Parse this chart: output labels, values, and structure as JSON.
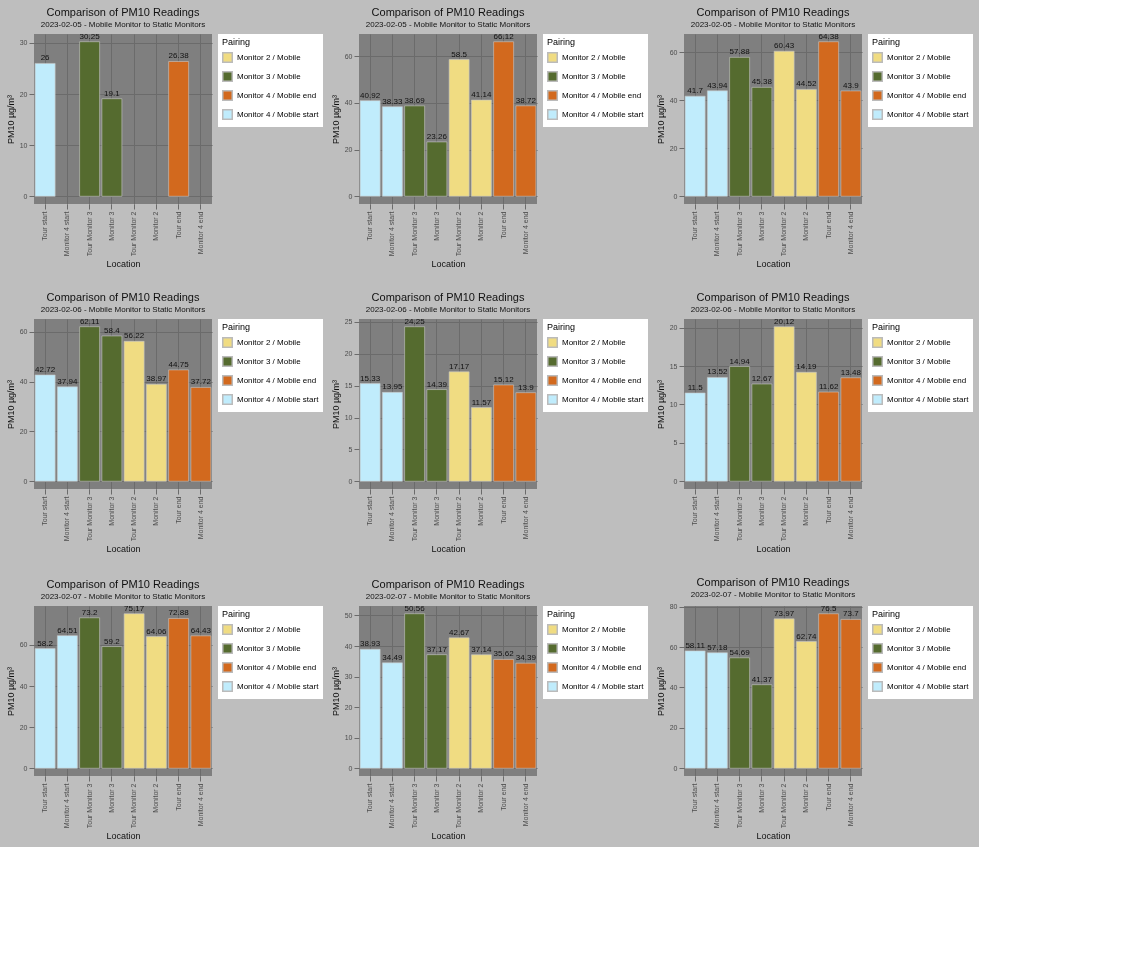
{
  "chart_data": [
    {
      "type": "bar",
      "title": "Comparison of PM10 Readings",
      "subtitle": "2023-02-05  - Mobile Monitor to Static Monitors",
      "xlabel": "Location",
      "ylabel": "PM10 µg/m³",
      "legend_title": "Pairing",
      "legend": "right",
      "grid": true,
      "data_labels": true,
      "categories": [
        "Tour start",
        "Monitor 4 start",
        "Tour Monitor 3",
        "Monitor 3",
        "Tour Monitor 2",
        "Monitor 2",
        "Tour end",
        "Monitor 4 end"
      ],
      "ylim": [
        -1.51,
        31.76
      ],
      "yticks": [
        0,
        10,
        20,
        30
      ],
      "series": [
        {
          "name": "Monitor 2 / Mobile",
          "color": "#f0dc82",
          "values": [
            null,
            null,
            null,
            null,
            null,
            null,
            null,
            null
          ]
        },
        {
          "name": "Monitor 3 / Mobile",
          "color": "#556b2f",
          "values": [
            null,
            null,
            30.25,
            19.1,
            null,
            null,
            null,
            null
          ]
        },
        {
          "name": "Monitor 4 / Mobile end",
          "color": "#d2691e",
          "values": [
            null,
            null,
            null,
            null,
            null,
            null,
            26.38,
            null
          ]
        },
        {
          "name": "Monitor 4 / Mobile start",
          "color": "#c0ecfc",
          "values": [
            26,
            null,
            null,
            null,
            null,
            null,
            null,
            null
          ]
        }
      ]
    },
    {
      "type": "bar",
      "title": "Comparison of PM10 Readings",
      "subtitle": "2023-02-05  - Mobile Monitor to Static Monitors",
      "xlabel": "Location",
      "ylabel": "PM10 µg/m³",
      "legend_title": "Pairing",
      "legend": "right",
      "grid": true,
      "data_labels": true,
      "categories": [
        "Tour start",
        "Monitor 4 start",
        "Tour Monitor 3",
        "Monitor 3",
        "Tour Monitor 2",
        "Monitor 2",
        "Tour end",
        "Monitor 4 end"
      ],
      "ylim": [
        -3.31,
        69.43
      ],
      "yticks": [
        0,
        20,
        40,
        60
      ],
      "series": [
        {
          "name": "Monitor 2 / Mobile",
          "color": "#f0dc82",
          "values": [
            null,
            null,
            null,
            null,
            58.5,
            41.14,
            null,
            null
          ]
        },
        {
          "name": "Monitor 3 / Mobile",
          "color": "#556b2f",
          "values": [
            null,
            null,
            38.69,
            23.26,
            null,
            null,
            null,
            null
          ]
        },
        {
          "name": "Monitor 4 / Mobile end",
          "color": "#d2691e",
          "values": [
            null,
            null,
            null,
            null,
            null,
            null,
            66.12,
            38.72
          ]
        },
        {
          "name": "Monitor 4 / Mobile start",
          "color": "#c0ecfc",
          "values": [
            40.92,
            38.33,
            null,
            null,
            null,
            null,
            null,
            null
          ]
        }
      ]
    },
    {
      "type": "bar",
      "title": "Comparison of PM10 Readings",
      "subtitle": "2023-02-05  - Mobile Monitor to Static Monitors",
      "xlabel": "Location",
      "ylabel": "PM10 µg/m³",
      "legend_title": "Pairing",
      "legend": "right",
      "grid": true,
      "data_labels": true,
      "categories": [
        "Tour start",
        "Monitor 4 start",
        "Tour Monitor 3",
        "Monitor 3",
        "Tour Monitor 2",
        "Monitor 2",
        "Tour end",
        "Monitor 4 end"
      ],
      "ylim": [
        -3.22,
        67.6
      ],
      "yticks": [
        0,
        20,
        40,
        60
      ],
      "series": [
        {
          "name": "Monitor 2 / Mobile",
          "color": "#f0dc82",
          "values": [
            null,
            null,
            null,
            null,
            60.43,
            44.52,
            null,
            null
          ]
        },
        {
          "name": "Monitor 3 / Mobile",
          "color": "#556b2f",
          "values": [
            null,
            null,
            57.88,
            45.38,
            null,
            null,
            null,
            null
          ]
        },
        {
          "name": "Monitor 4 / Mobile end",
          "color": "#d2691e",
          "values": [
            null,
            null,
            null,
            null,
            null,
            null,
            64.38,
            43.9
          ]
        },
        {
          "name": "Monitor 4 / Mobile start",
          "color": "#c0ecfc",
          "values": [
            41.7,
            43.94,
            null,
            null,
            null,
            null,
            null,
            null
          ]
        }
      ]
    },
    {
      "type": "bar",
      "title": "Comparison of PM10 Readings",
      "subtitle": "2023-02-06  - Mobile Monitor to Static Monitors",
      "xlabel": "Location",
      "ylabel": "PM10 µg/m³",
      "legend_title": "Pairing",
      "legend": "right",
      "grid": true,
      "data_labels": true,
      "categories": [
        "Tour start",
        "Monitor 4 start",
        "Tour Monitor 3",
        "Monitor 3",
        "Tour Monitor 2",
        "Monitor 2",
        "Tour end",
        "Monitor 4 end"
      ],
      "ylim": [
        -3.11,
        65.2
      ],
      "yticks": [
        0,
        20,
        40,
        60
      ],
      "series": [
        {
          "name": "Monitor 2 / Mobile",
          "color": "#f0dc82",
          "values": [
            null,
            null,
            null,
            null,
            56.22,
            38.97,
            null,
            null
          ]
        },
        {
          "name": "Monitor 3 / Mobile",
          "color": "#556b2f",
          "values": [
            null,
            null,
            62.11,
            58.4,
            null,
            null,
            null,
            null
          ]
        },
        {
          "name": "Monitor 4 / Mobile end",
          "color": "#d2691e",
          "values": [
            null,
            null,
            null,
            null,
            null,
            null,
            44.75,
            37.72
          ]
        },
        {
          "name": "Monitor 4 / Mobile start",
          "color": "#c0ecfc",
          "values": [
            42.72,
            37.94,
            null,
            null,
            null,
            null,
            null,
            null
          ]
        }
      ]
    },
    {
      "type": "bar",
      "title": "Comparison of PM10 Readings",
      "subtitle": "2023-02-06  - Mobile Monitor to Static Monitors",
      "xlabel": "Location",
      "ylabel": "PM10 µg/m³",
      "legend_title": "Pairing",
      "legend": "right",
      "grid": true,
      "data_labels": true,
      "categories": [
        "Tour start",
        "Monitor 4 start",
        "Tour Monitor 3",
        "Monitor 3",
        "Tour Monitor 2",
        "Monitor 2",
        "Tour end",
        "Monitor 4 end"
      ],
      "ylim": [
        -1.21,
        25.46
      ],
      "yticks": [
        0,
        5,
        10,
        15,
        20,
        25
      ],
      "series": [
        {
          "name": "Monitor 2 / Mobile",
          "color": "#f0dc82",
          "values": [
            null,
            null,
            null,
            null,
            17.17,
            11.57,
            null,
            null
          ]
        },
        {
          "name": "Monitor 3 / Mobile",
          "color": "#556b2f",
          "values": [
            null,
            null,
            24.25,
            14.39,
            null,
            null,
            null,
            null
          ]
        },
        {
          "name": "Monitor 4 / Mobile end",
          "color": "#d2691e",
          "values": [
            null,
            null,
            null,
            null,
            null,
            null,
            15.12,
            13.9
          ]
        },
        {
          "name": "Monitor 4 / Mobile start",
          "color": "#c0ecfc",
          "values": [
            15.33,
            13.95,
            null,
            null,
            null,
            null,
            null,
            null
          ]
        }
      ]
    },
    {
      "type": "bar",
      "title": "Comparison of PM10 Readings",
      "subtitle": "2023-02-06  - Mobile Monitor to Static Monitors",
      "xlabel": "Location",
      "ylabel": "PM10 µg/m³",
      "legend_title": "Pairing",
      "legend": "right",
      "grid": true,
      "data_labels": true,
      "categories": [
        "Tour start",
        "Monitor 4 start",
        "Tour Monitor 3",
        "Monitor 3",
        "Tour Monitor 2",
        "Monitor 2",
        "Tour end",
        "Monitor 4 end"
      ],
      "ylim": [
        -1.01,
        21.13
      ],
      "yticks": [
        0,
        5,
        10,
        15,
        20
      ],
      "series": [
        {
          "name": "Monitor 2 / Mobile",
          "color": "#f0dc82",
          "values": [
            null,
            null,
            null,
            null,
            20.12,
            14.19,
            null,
            null
          ]
        },
        {
          "name": "Monitor 3 / Mobile",
          "color": "#556b2f",
          "values": [
            null,
            null,
            14.94,
            12.67,
            null,
            null,
            null,
            null
          ]
        },
        {
          "name": "Monitor 4 / Mobile end",
          "color": "#d2691e",
          "values": [
            null,
            null,
            null,
            null,
            null,
            null,
            11.62,
            13.48
          ]
        },
        {
          "name": "Monitor 4 / Mobile start",
          "color": "#c0ecfc",
          "values": [
            11.5,
            13.52,
            null,
            null,
            null,
            null,
            null,
            null
          ]
        }
      ]
    },
    {
      "type": "bar",
      "title": "Comparison of PM10 Readings",
      "subtitle": "2023-02-07  - Mobile Monitor to Static Monitors",
      "xlabel": "Location",
      "ylabel": "PM10 µg/m³",
      "legend_title": "Pairing",
      "legend": "right",
      "grid": true,
      "data_labels": true,
      "categories": [
        "Tour start",
        "Monitor 4 start",
        "Tour Monitor 3",
        "Monitor 3",
        "Tour Monitor 2",
        "Monitor 2",
        "Tour end",
        "Monitor 4 end"
      ],
      "ylim": [
        -3.76,
        78.93
      ],
      "yticks": [
        0,
        20,
        40,
        60
      ],
      "series": [
        {
          "name": "Monitor 2 / Mobile",
          "color": "#f0dc82",
          "values": [
            null,
            null,
            null,
            null,
            75.17,
            64.06,
            null,
            null
          ]
        },
        {
          "name": "Monitor 3 / Mobile",
          "color": "#556b2f",
          "values": [
            null,
            null,
            73.2,
            59.2,
            null,
            null,
            null,
            null
          ]
        },
        {
          "name": "Monitor 4 / Mobile end",
          "color": "#d2691e",
          "values": [
            null,
            null,
            null,
            null,
            null,
            null,
            72.88,
            64.43
          ]
        },
        {
          "name": "Monitor 4 / Mobile start",
          "color": "#c0ecfc",
          "values": [
            58.2,
            64.51,
            null,
            null,
            null,
            null,
            null,
            null
          ]
        }
      ]
    },
    {
      "type": "bar",
      "title": "Comparison of PM10 Readings",
      "subtitle": "2023-02-07  - Mobile Monitor to Static Monitors",
      "xlabel": "Location",
      "ylabel": "PM10 µg/m³",
      "legend_title": "Pairing",
      "legend": "right",
      "grid": true,
      "data_labels": true,
      "categories": [
        "Tour start",
        "Monitor 4 start",
        "Tour Monitor 3",
        "Monitor 3",
        "Tour Monitor 2",
        "Monitor 2",
        "Tour end",
        "Monitor 4 end"
      ],
      "ylim": [
        -2.53,
        53.09
      ],
      "yticks": [
        0,
        10,
        20,
        30,
        40,
        50
      ],
      "series": [
        {
          "name": "Monitor 2 / Mobile",
          "color": "#f0dc82",
          "values": [
            null,
            null,
            null,
            null,
            42.67,
            37.14,
            null,
            null
          ]
        },
        {
          "name": "Monitor 3 / Mobile",
          "color": "#556b2f",
          "values": [
            null,
            null,
            50.56,
            37.17,
            null,
            null,
            null,
            null
          ]
        },
        {
          "name": "Monitor 4 / Mobile end",
          "color": "#d2691e",
          "values": [
            null,
            null,
            null,
            null,
            null,
            null,
            35.62,
            34.39
          ]
        },
        {
          "name": "Monitor 4 / Mobile start",
          "color": "#c0ecfc",
          "values": [
            38.93,
            34.49,
            null,
            null,
            null,
            null,
            null,
            null
          ]
        }
      ]
    },
    {
      "type": "bar",
      "title": "Comparison of PM10 Readings",
      "subtitle": "2023-02-07  - Mobile Monitor to Static Monitors",
      "xlabel": "Location",
      "ylabel": "PM10 µg/m³",
      "legend_title": "Pairing",
      "legend": "right",
      "grid": true,
      "data_labels": true,
      "categories": [
        "Tour start",
        "Monitor 4 start",
        "Tour Monitor 3",
        "Monitor 3",
        "Tour Monitor 2",
        "Monitor 2",
        "Tour end",
        "Monitor 4 end"
      ],
      "ylim": [
        -3.83,
        80.33
      ],
      "yticks": [
        0,
        20,
        40,
        60,
        80
      ],
      "series": [
        {
          "name": "Monitor 2 / Mobile",
          "color": "#f0dc82",
          "values": [
            null,
            null,
            null,
            null,
            73.97,
            62.74,
            null,
            null
          ]
        },
        {
          "name": "Monitor 3 / Mobile",
          "color": "#556b2f",
          "values": [
            null,
            null,
            54.69,
            41.37,
            null,
            null,
            null,
            null
          ]
        },
        {
          "name": "Monitor 4 / Mobile end",
          "color": "#d2691e",
          "values": [
            null,
            null,
            null,
            null,
            null,
            null,
            76.5,
            73.7
          ]
        },
        {
          "name": "Monitor 4 / Mobile start",
          "color": "#c0ecfc",
          "values": [
            58.11,
            57.18,
            null,
            null,
            null,
            null,
            null,
            null
          ]
        }
      ]
    }
  ]
}
